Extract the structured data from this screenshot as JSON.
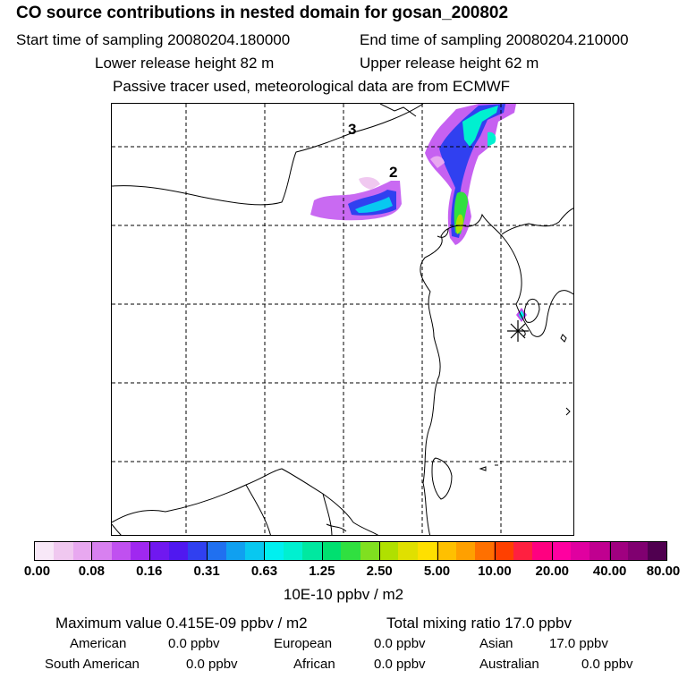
{
  "header": {
    "title": "CO  source contributions in nested domain for gosan_200802",
    "start_time": "Start time of sampling 20080204.180000",
    "end_time": "End time of sampling 20080204.210000",
    "lower_release": "Lower release height   82 m",
    "upper_release": "Upper release height   62 m",
    "tracer_note": "Passive tracer used, meteorological data are from ECMWF"
  },
  "map": {
    "labels": {
      "track3": "3",
      "track2": "2"
    },
    "receptor_marker": "asterisk-station-icon"
  },
  "colorbar": {
    "colors": [
      "#f8e8f8",
      "#f0c8f0",
      "#e8a8f0",
      "#d880f0",
      "#c050f0",
      "#a028f0",
      "#7018f0",
      "#5018f0",
      "#3040f0",
      "#2070f0",
      "#10a0f0",
      "#08c8f0",
      "#00f0f0",
      "#00f0d0",
      "#00e8a0",
      "#00e070",
      "#30e040",
      "#80e020",
      "#b0e000",
      "#e0e000",
      "#ffe000",
      "#ffc000",
      "#ffa000",
      "#ff7000",
      "#ff4000",
      "#ff2040",
      "#ff0080",
      "#ff00a0",
      "#e000a0",
      "#c00090",
      "#a00080",
      "#800070",
      "#500050"
    ],
    "ticks": [
      "0.00",
      "0.08",
      "0.16",
      "0.31",
      "0.63",
      "1.25",
      "2.50",
      "5.00",
      "10.00",
      "20.00",
      "40.00",
      "80.00"
    ],
    "unit": "10E-10 ppbv / m2"
  },
  "stats": {
    "max_value": "Maximum value  0.415E-09 ppbv / m2",
    "total_mixing": "Total mixing ratio       17.0 ppbv",
    "american_label": "American",
    "american_value": "0.0 ppbv",
    "european_label": "European",
    "european_value": "0.0 ppbv",
    "asian_label": "Asian",
    "asian_value": "17.0 ppbv",
    "south_american_label": "South American",
    "south_american_value": "0.0 ppbv",
    "african_label": "African",
    "african_value": "0.0 ppbv",
    "australian_label": "Australian",
    "australian_value": "0.0 ppbv"
  }
}
